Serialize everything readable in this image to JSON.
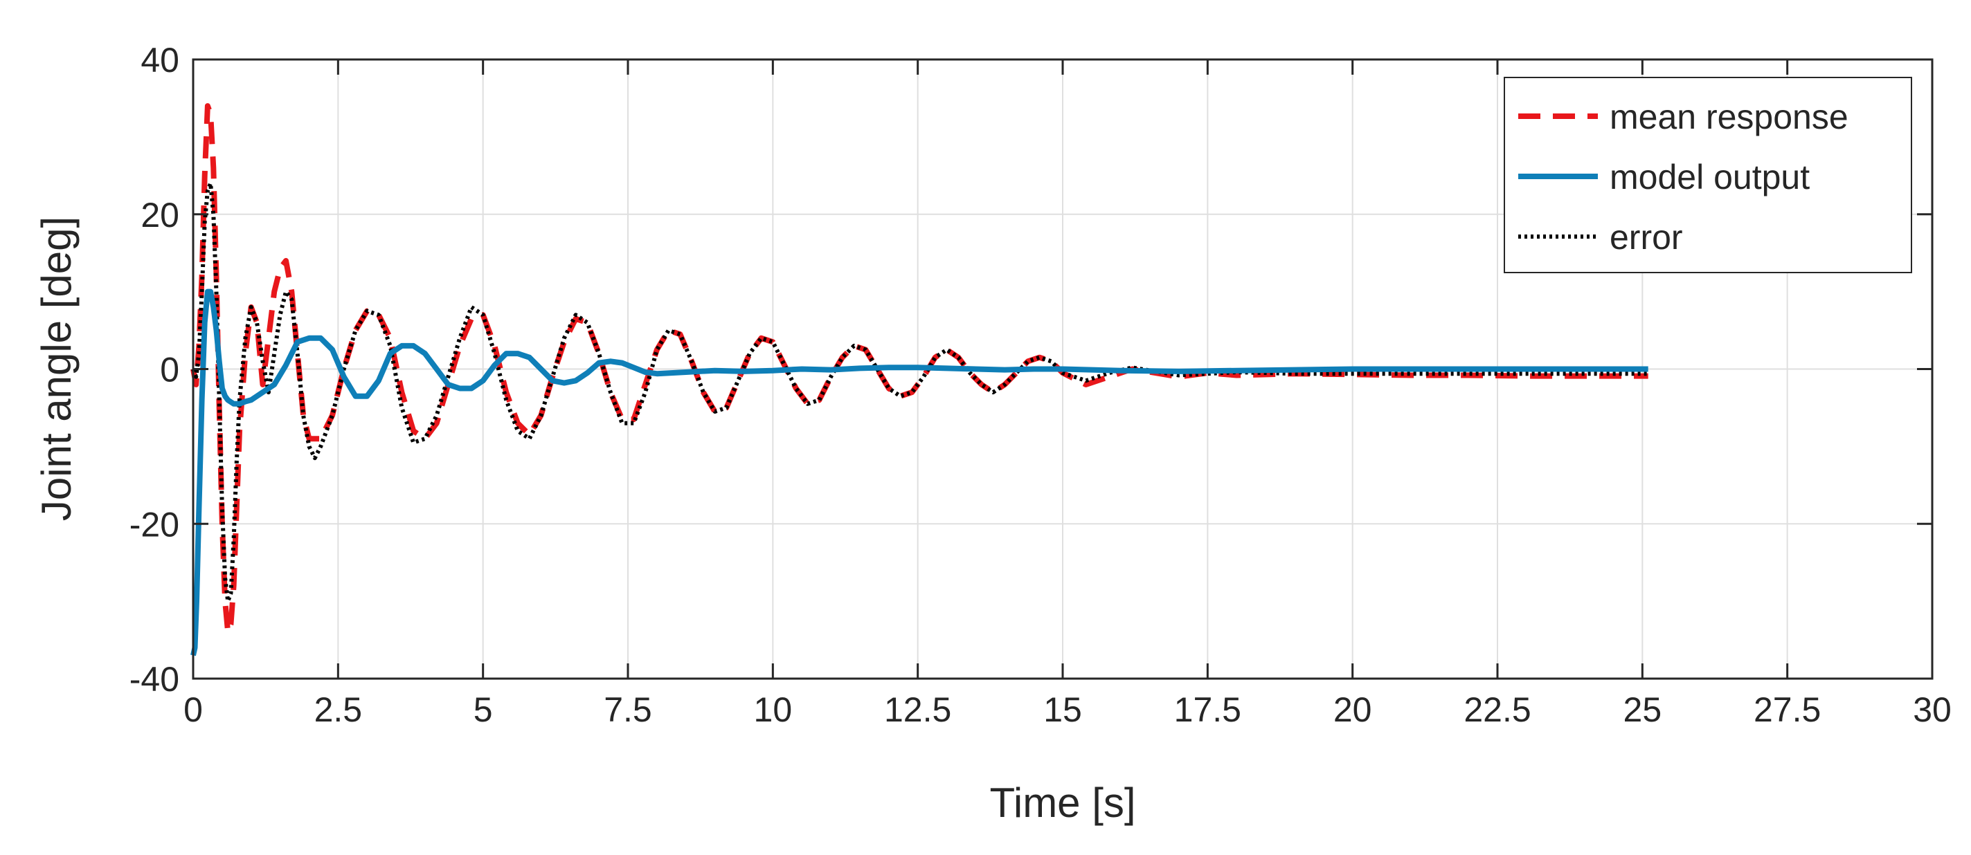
{
  "chart_data": {
    "type": "line",
    "title": "",
    "xlabel": "Time [s]",
    "ylabel": "Joint angle [deg]",
    "xlim": [
      0,
      30
    ],
    "ylim": [
      -40,
      40
    ],
    "xticks": [
      0,
      2.5,
      5,
      7.5,
      10,
      12.5,
      15,
      17.5,
      20,
      22.5,
      25,
      27.5,
      30
    ],
    "xtick_labels": [
      "0",
      "2.5",
      "5",
      "7.5",
      "10",
      "12.5",
      "15",
      "17.5",
      "20",
      "22.5",
      "25",
      "27.5",
      "30"
    ],
    "yticks": [
      -40,
      -20,
      0,
      20,
      40
    ],
    "ytick_labels": [
      "-40",
      "-20",
      "0",
      "20",
      "40"
    ],
    "grid": true,
    "legend_position": "top-right",
    "series": [
      {
        "name": "mean response",
        "color": "#e8171b",
        "style": "dashed",
        "x": [
          0,
          0.05,
          0.1,
          0.15,
          0.2,
          0.25,
          0.3,
          0.35,
          0.4,
          0.45,
          0.5,
          0.55,
          0.6,
          0.65,
          0.7,
          0.75,
          0.8,
          0.9,
          1.0,
          1.1,
          1.2,
          1.3,
          1.4,
          1.5,
          1.6,
          1.7,
          1.8,
          1.9,
          2.0,
          2.2,
          2.4,
          2.6,
          2.8,
          3.0,
          3.2,
          3.4,
          3.6,
          3.8,
          4.0,
          4.2,
          4.4,
          4.6,
          4.8,
          5.0,
          5.2,
          5.4,
          5.6,
          5.8,
          6.0,
          6.2,
          6.4,
          6.6,
          6.8,
          7.0,
          7.2,
          7.4,
          7.6,
          7.8,
          8.0,
          8.2,
          8.4,
          8.6,
          8.8,
          9.0,
          9.2,
          9.4,
          9.6,
          9.8,
          10.0,
          10.2,
          10.4,
          10.6,
          10.8,
          11.0,
          11.2,
          11.4,
          11.6,
          11.8,
          12.0,
          12.2,
          12.4,
          12.6,
          12.8,
          13.0,
          13.2,
          13.4,
          13.6,
          13.8,
          14.0,
          14.2,
          14.4,
          14.6,
          14.8,
          15.0,
          15.4,
          15.8,
          16.2,
          16.6,
          17.0,
          17.5,
          18.0,
          19.0,
          20.0,
          21.0,
          22.0,
          23.0,
          24.0,
          25.0,
          25.1
        ],
        "y": [
          0,
          -2,
          3,
          12,
          25,
          34,
          33,
          26,
          12,
          -5,
          -20,
          -30,
          -34,
          -33,
          -28,
          -18,
          -8,
          2,
          8,
          6,
          -2,
          4,
          10,
          13,
          14,
          10,
          2,
          -6,
          -9,
          -9,
          -6,
          0,
          5,
          7.5,
          7,
          4,
          -3,
          -8,
          -9,
          -7,
          -2,
          3,
          6.5,
          7,
          3,
          -3,
          -7,
          -8.5,
          -6,
          -1,
          3.5,
          6.5,
          6,
          2,
          -3,
          -6.5,
          -6.5,
          -2,
          2.5,
          5,
          4.5,
          1,
          -3,
          -5.5,
          -5,
          -1.5,
          2,
          4,
          3.5,
          0.5,
          -2.5,
          -4.5,
          -4,
          -1,
          1.5,
          3,
          2.5,
          0,
          -2.5,
          -3.5,
          -3,
          -1,
          1.5,
          2.5,
          1.5,
          -0.5,
          -2,
          -3,
          -2,
          -0.5,
          1,
          1.5,
          1,
          -0.5,
          -2,
          -1,
          0,
          -0.5,
          -1,
          -0.5,
          -0.8,
          -0.6,
          -0.7,
          -0.8,
          -0.8,
          -0.9,
          -0.9,
          -0.9,
          -0.9
        ]
      },
      {
        "name": "model output",
        "color": "#0f7fb8",
        "style": "solid",
        "x": [
          0,
          0.03,
          0.06,
          0.1,
          0.15,
          0.2,
          0.25,
          0.3,
          0.35,
          0.4,
          0.45,
          0.5,
          0.55,
          0.6,
          0.7,
          0.8,
          0.9,
          1.0,
          1.1,
          1.2,
          1.4,
          1.6,
          1.8,
          2.0,
          2.2,
          2.4,
          2.6,
          2.8,
          3.0,
          3.2,
          3.4,
          3.6,
          3.8,
          4.0,
          4.2,
          4.4,
          4.6,
          4.8,
          5.0,
          5.2,
          5.4,
          5.6,
          5.8,
          6.0,
          6.2,
          6.4,
          6.6,
          6.8,
          7.0,
          7.2,
          7.4,
          7.6,
          7.8,
          8.0,
          8.5,
          9.0,
          9.5,
          10.0,
          10.5,
          11.0,
          11.5,
          12.0,
          12.5,
          13.0,
          13.5,
          14.0,
          14.5,
          15.0,
          16.0,
          17.0,
          18.0,
          19.0,
          20.0,
          21.0,
          22.0,
          23.0,
          24.0,
          25.0,
          25.1
        ],
        "y": [
          -37,
          -36,
          -30,
          -18,
          -4,
          6,
          10,
          10,
          8,
          5,
          1,
          -2.5,
          -3.5,
          -4,
          -4.5,
          -4.5,
          -4.2,
          -4,
          -3.5,
          -3,
          -2,
          0.5,
          3.5,
          4,
          4,
          2.5,
          -1,
          -3.5,
          -3.5,
          -1.5,
          2,
          3,
          3,
          2,
          0,
          -2,
          -2.5,
          -2.5,
          -1.5,
          0.5,
          2,
          2,
          1.5,
          0,
          -1.5,
          -1.8,
          -1.5,
          -0.5,
          0.8,
          1,
          0.8,
          0.2,
          -0.4,
          -0.6,
          -0.4,
          -0.2,
          -0.3,
          -0.2,
          0,
          -0.1,
          0.1,
          0.2,
          0.2,
          0.1,
          0,
          -0.1,
          0,
          0,
          -0.2,
          -0.3,
          -0.2,
          -0.1,
          0,
          0,
          0,
          0,
          0,
          0,
          0
        ]
      },
      {
        "name": "error",
        "color": "#000000",
        "style": "dotted",
        "x": [
          0,
          0.05,
          0.1,
          0.15,
          0.2,
          0.25,
          0.3,
          0.35,
          0.4,
          0.45,
          0.5,
          0.55,
          0.6,
          0.65,
          0.7,
          0.75,
          0.8,
          0.9,
          1.0,
          1.1,
          1.2,
          1.3,
          1.4,
          1.5,
          1.6,
          1.7,
          1.8,
          1.9,
          2.0,
          2.1,
          2.2,
          2.4,
          2.6,
          2.8,
          3.0,
          3.2,
          3.4,
          3.6,
          3.8,
          4.0,
          4.2,
          4.4,
          4.6,
          4.8,
          5.0,
          5.2,
          5.4,
          5.6,
          5.8,
          6.0,
          6.2,
          6.4,
          6.6,
          6.8,
          7.0,
          7.2,
          7.4,
          7.6,
          7.8,
          8.0,
          8.2,
          8.4,
          8.6,
          8.8,
          9.0,
          9.2,
          9.4,
          9.6,
          9.8,
          10.0,
          10.2,
          10.4,
          10.6,
          10.8,
          11.0,
          11.2,
          11.4,
          11.6,
          11.8,
          12.0,
          12.2,
          12.4,
          12.6,
          12.8,
          13.0,
          13.2,
          13.4,
          13.6,
          13.8,
          14.0,
          14.2,
          14.4,
          14.6,
          14.8,
          15.0,
          15.4,
          15.8,
          16.2,
          16.6,
          17.0,
          17.5,
          18.0,
          19.0,
          20.0,
          21.0,
          22.0,
          23.0,
          24.0,
          25.0,
          25.1
        ],
        "y": [
          0,
          -1,
          2,
          10,
          19,
          23,
          24,
          20,
          10,
          -4,
          -18,
          -27,
          -30,
          -29,
          -22,
          -12,
          -4,
          4,
          8,
          6,
          1,
          -3,
          2,
          7,
          10,
          9,
          2,
          -6,
          -10,
          -11.5,
          -10,
          -6,
          0,
          5,
          7.5,
          7,
          3,
          -5,
          -9.5,
          -9,
          -6,
          -1,
          4,
          8,
          7,
          2,
          -4,
          -8,
          -9,
          -6,
          -1,
          4,
          7,
          6,
          2,
          -3,
          -7,
          -7,
          -3,
          2.5,
          5,
          4.5,
          1,
          -3,
          -5.5,
          -5,
          -1.5,
          2,
          4,
          3.5,
          0.5,
          -2.5,
          -4.5,
          -4,
          -1,
          1.5,
          3,
          2.5,
          0,
          -2.5,
          -3.5,
          -3,
          -1,
          1.5,
          2.5,
          1.5,
          -0.5,
          -2,
          -3,
          -2,
          -0.5,
          1,
          1.5,
          1,
          -0.5,
          -1.5,
          -0.5,
          0.2,
          -0.3,
          -0.8,
          -0.6,
          -0.4,
          -0.6,
          -0.6,
          -0.6,
          -0.6,
          -0.6,
          -0.6,
          -0.6,
          -0.6
        ]
      }
    ]
  }
}
